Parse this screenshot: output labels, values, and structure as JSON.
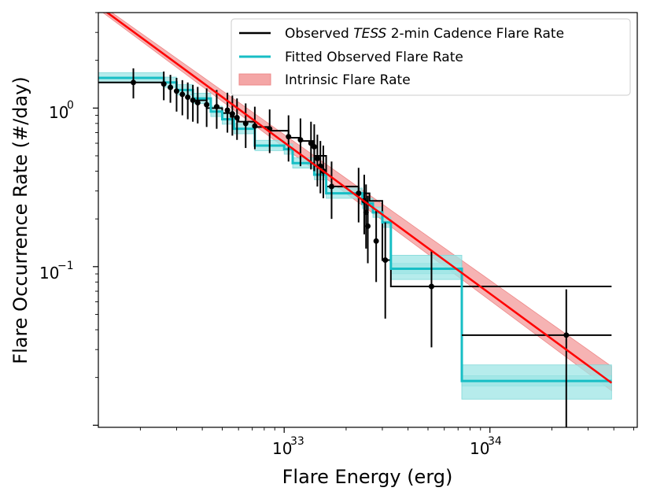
{
  "chart_data": {
    "type": "line",
    "xscale": "log",
    "yscale": "log",
    "xlim": [
      1.25e+32,
      5.2e+34
    ],
    "ylim": [
      0.0097,
      4.0
    ],
    "xlabel": "Flare Energy (erg)",
    "ylabel": "Flare Occurrence Rate (#/day)",
    "x_ticks": [
      {
        "base": "10",
        "exp": "33"
      },
      {
        "base": "10",
        "exp": "34"
      }
    ],
    "y_ticks": [
      {
        "base": "10",
        "exp": "0"
      },
      {
        "base": "10",
        "exp": "−1"
      }
    ],
    "y_tick_values": [
      1.0,
      0.1
    ],
    "x_tick_values": [
      1e+33,
      1e+34
    ],
    "legend": {
      "placement": "top-right",
      "entries": [
        {
          "label_pre": "Observed ",
          "label_italic": "TESS",
          "label_post": " 2-min Cadence Flare Rate",
          "color": "#000000",
          "kind": "line"
        },
        {
          "label_pre": "Fitted Observed Flare Rate",
          "label_italic": "",
          "label_post": "",
          "color": "#00bfbf",
          "kind": "line"
        },
        {
          "label_pre": "Intrinsic Flare Rate",
          "label_italic": "",
          "label_post": "",
          "color": "#f4a6a6",
          "kind": "patch"
        }
      ]
    },
    "colors": {
      "observed": "#000000",
      "fitted": "#17bec5",
      "fitted_band": "#9ee6e6",
      "intrinsic": "#ff0000",
      "intrinsic_band": "#f4a6a6"
    },
    "intrinsic_line": {
      "x": [
        1.25e+32,
        3.9e+34
      ],
      "y": [
        4.4,
        0.0185
      ],
      "y_upper": [
        4.6,
        0.0235
      ],
      "y_lower": [
        4.2,
        0.0165
      ]
    },
    "observed_step": {
      "x": [
        1.25e+32,
        2.6e+32,
        3e+32,
        3.6e+32,
        4.2e+32,
        5e+32,
        5.5e+32,
        6e+32,
        7.2e+32,
        8.5e+32,
        1.05e+33,
        1.2e+33,
        1.4e+33,
        1.6e+33,
        2.3e+33,
        2.6e+33,
        3e+33,
        3.3e+33,
        7.3e+33,
        3.9e+34
      ],
      "y": [
        1.45,
        1.45,
        1.3,
        1.12,
        1.0,
        0.93,
        0.88,
        0.82,
        0.76,
        0.72,
        0.65,
        0.62,
        0.5,
        0.32,
        0.29,
        0.26,
        0.11,
        0.075,
        0.075,
        0.037
      ]
    },
    "fitted_step": {
      "x": [
        1.25e+32,
        2.6e+32,
        3e+32,
        3.6e+32,
        4.4e+32,
        5e+32,
        5.7e+32,
        7.2e+32,
        1e+33,
        1.1e+33,
        1.4e+33,
        1.6e+33,
        2.4e+33,
        2.7e+33,
        3e+33,
        3.3e+33,
        7.3e+33,
        3.9e+34
      ],
      "y": [
        1.55,
        1.45,
        1.3,
        1.15,
        0.95,
        0.85,
        0.74,
        0.58,
        0.55,
        0.45,
        0.38,
        0.29,
        0.25,
        0.22,
        0.19,
        0.097,
        0.019,
        0.019
      ],
      "band_upper_factor": 1.08,
      "band_lower_factor": 0.93
    },
    "observed_points": [
      {
        "x": 1.85e+32,
        "y": 1.45,
        "ylo": 1.15,
        "yhi": 1.78
      },
      {
        "x": 2.6e+32,
        "y": 1.42,
        "ylo": 1.12,
        "yhi": 1.7
      },
      {
        "x": 2.8e+32,
        "y": 1.35,
        "ylo": 1.08,
        "yhi": 1.62
      },
      {
        "x": 3e+32,
        "y": 1.28,
        "ylo": 0.95,
        "yhi": 1.55
      },
      {
        "x": 3.2e+32,
        "y": 1.22,
        "ylo": 0.9,
        "yhi": 1.5
      },
      {
        "x": 3.4e+32,
        "y": 1.17,
        "ylo": 0.85,
        "yhi": 1.45
      },
      {
        "x": 3.6e+32,
        "y": 1.12,
        "ylo": 0.82,
        "yhi": 1.4
      },
      {
        "x": 3.8e+32,
        "y": 1.08,
        "ylo": 0.8,
        "yhi": 1.36
      },
      {
        "x": 4.2e+32,
        "y": 1.05,
        "ylo": 0.76,
        "yhi": 1.33
      },
      {
        "x": 4.7e+32,
        "y": 1.02,
        "ylo": 0.74,
        "yhi": 1.3
      },
      {
        "x": 5.3e+32,
        "y": 0.97,
        "ylo": 0.7,
        "yhi": 1.25
      },
      {
        "x": 5.6e+32,
        "y": 0.92,
        "ylo": 0.67,
        "yhi": 1.2
      },
      {
        "x": 5.9e+32,
        "y": 0.87,
        "ylo": 0.63,
        "yhi": 1.15
      },
      {
        "x": 6.5e+32,
        "y": 0.8,
        "ylo": 0.56,
        "yhi": 1.07
      },
      {
        "x": 7.2e+32,
        "y": 0.77,
        "ylo": 0.55,
        "yhi": 1.02
      },
      {
        "x": 8.5e+32,
        "y": 0.74,
        "ylo": 0.52,
        "yhi": 0.98
      },
      {
        "x": 1.05e+33,
        "y": 0.66,
        "ylo": 0.46,
        "yhi": 0.9
      },
      {
        "x": 1.2e+33,
        "y": 0.63,
        "ylo": 0.43,
        "yhi": 0.86
      },
      {
        "x": 1.35e+33,
        "y": 0.6,
        "ylo": 0.41,
        "yhi": 0.82
      },
      {
        "x": 1.4e+33,
        "y": 0.57,
        "ylo": 0.4,
        "yhi": 0.79
      },
      {
        "x": 1.45e+33,
        "y": 0.48,
        "ylo": 0.32,
        "yhi": 0.68
      },
      {
        "x": 1.5e+33,
        "y": 0.43,
        "ylo": 0.29,
        "yhi": 0.62
      },
      {
        "x": 1.55e+33,
        "y": 0.4,
        "ylo": 0.27,
        "yhi": 0.58
      },
      {
        "x": 1.7e+33,
        "y": 0.32,
        "ylo": 0.2,
        "yhi": 0.46
      },
      {
        "x": 2.3e+33,
        "y": 0.29,
        "ylo": 0.19,
        "yhi": 0.42
      },
      {
        "x": 2.45e+33,
        "y": 0.26,
        "ylo": 0.16,
        "yhi": 0.38
      },
      {
        "x": 2.5e+33,
        "y": 0.22,
        "ylo": 0.13,
        "yhi": 0.33
      },
      {
        "x": 2.55e+33,
        "y": 0.18,
        "ylo": 0.105,
        "yhi": 0.28
      },
      {
        "x": 2.8e+33,
        "y": 0.145,
        "ylo": 0.08,
        "yhi": 0.23
      },
      {
        "x": 3.1e+33,
        "y": 0.11,
        "ylo": 0.047,
        "yhi": 0.19
      },
      {
        "x": 5.2e+33,
        "y": 0.075,
        "ylo": 0.031,
        "yhi": 0.127
      },
      {
        "x": 2.35e+34,
        "y": 0.037,
        "ylo": 0.009,
        "yhi": 0.072
      }
    ]
  }
}
